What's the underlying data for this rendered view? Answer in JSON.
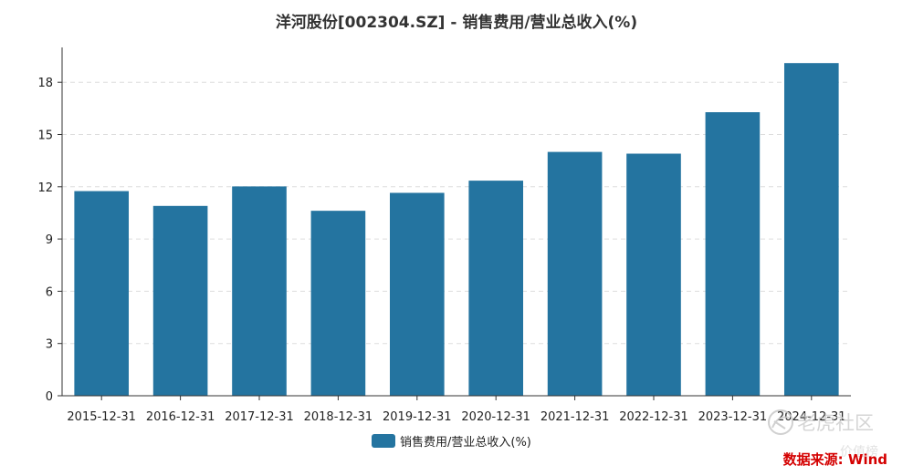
{
  "chart_data": {
    "type": "bar",
    "title": "洋河股份[002304.SZ] - 销售费用/营业总收入(%)",
    "categories": [
      "2015-12-31",
      "2016-12-31",
      "2017-12-31",
      "2018-12-31",
      "2019-12-31",
      "2020-12-31",
      "2021-12-31",
      "2022-12-31",
      "2023-12-31",
      "2024-12-31"
    ],
    "series": [
      {
        "name": "销售费用/营业总收入(%)",
        "values": [
          11.75,
          10.9,
          12.02,
          10.62,
          11.65,
          12.35,
          14.0,
          13.9,
          16.28,
          19.1
        ],
        "color": "#2474a0"
      }
    ],
    "xlabel": "",
    "ylabel": "",
    "ylim": [
      0,
      20
    ],
    "yticks": [
      0,
      3,
      6,
      9,
      12,
      15,
      18
    ],
    "grid": true,
    "legend_position": "bottom-center"
  },
  "source": "数据来源: Wind",
  "watermark": {
    "text_primary": "老虎社区",
    "text_secondary": "价值榜"
  }
}
